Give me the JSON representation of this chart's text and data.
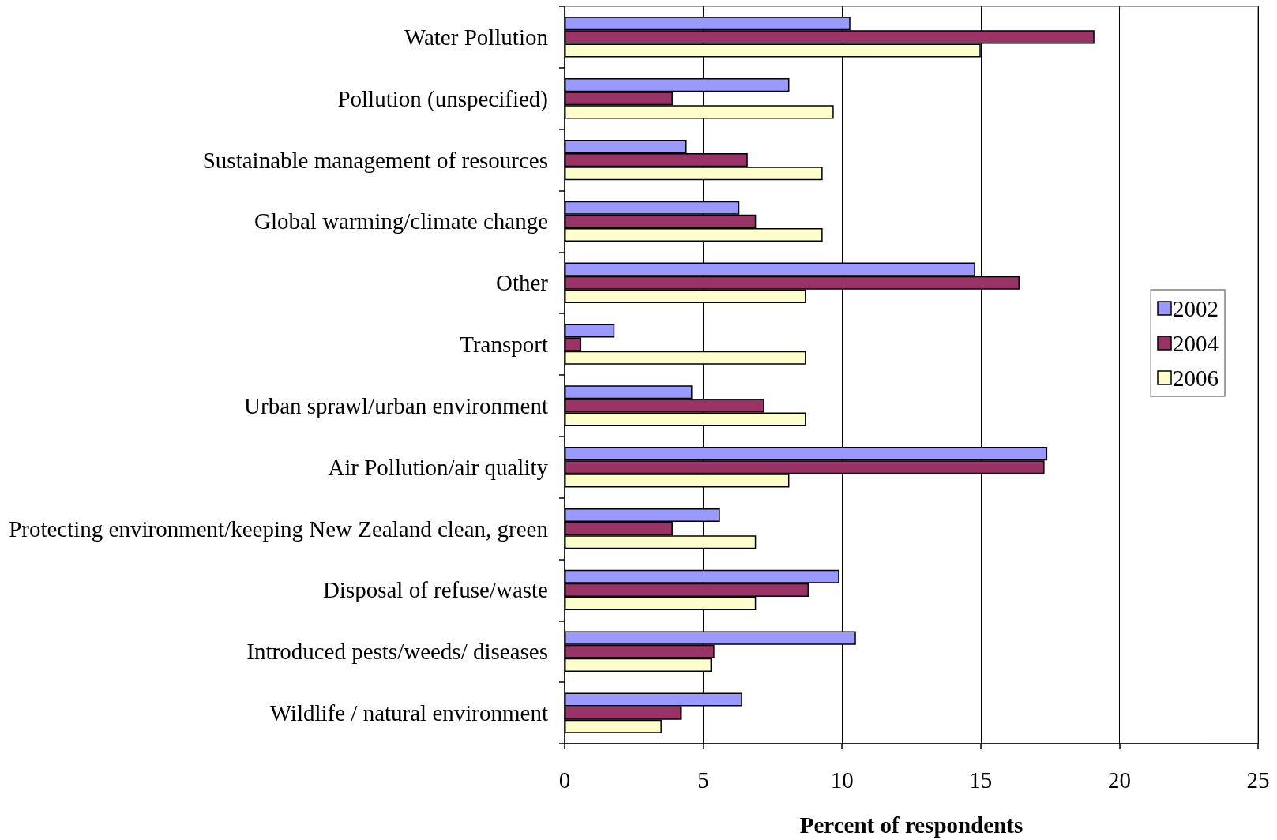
{
  "chart_data": {
    "type": "bar",
    "orientation": "horizontal",
    "xlabel": "Percent of respondents",
    "categories": [
      "Water Pollution",
      "Pollution (unspecified)",
      "Sustainable management of resources",
      "Global warming/climate change",
      "Other",
      "Transport",
      "Urban sprawl/urban environment",
      "Air Pollution/air quality",
      "Protecting environment/keeping New Zealand clean, green",
      "Disposal of refuse/waste",
      "Introduced pests/weeds/ diseases",
      "Wildlife / natural environment"
    ],
    "series": [
      {
        "name": "2002",
        "color": "#9999ff",
        "values": [
          10.3,
          8.1,
          4.4,
          6.3,
          14.8,
          1.8,
          4.6,
          17.4,
          5.6,
          9.9,
          10.5,
          6.4
        ]
      },
      {
        "name": "2004",
        "color": "#993366",
        "values": [
          19.1,
          3.9,
          6.6,
          6.9,
          16.4,
          0.6,
          7.2,
          17.3,
          3.9,
          8.8,
          5.4,
          4.2
        ]
      },
      {
        "name": "2006",
        "color": "#ffffcc",
        "values": [
          15.0,
          9.7,
          9.3,
          9.3,
          8.7,
          8.7,
          8.7,
          8.1,
          6.9,
          6.9,
          5.3,
          3.5
        ]
      }
    ],
    "xlim": [
      0,
      25
    ],
    "xticks": [
      0,
      5,
      10,
      15,
      20,
      25
    ],
    "grid": "x",
    "legend": "right"
  }
}
